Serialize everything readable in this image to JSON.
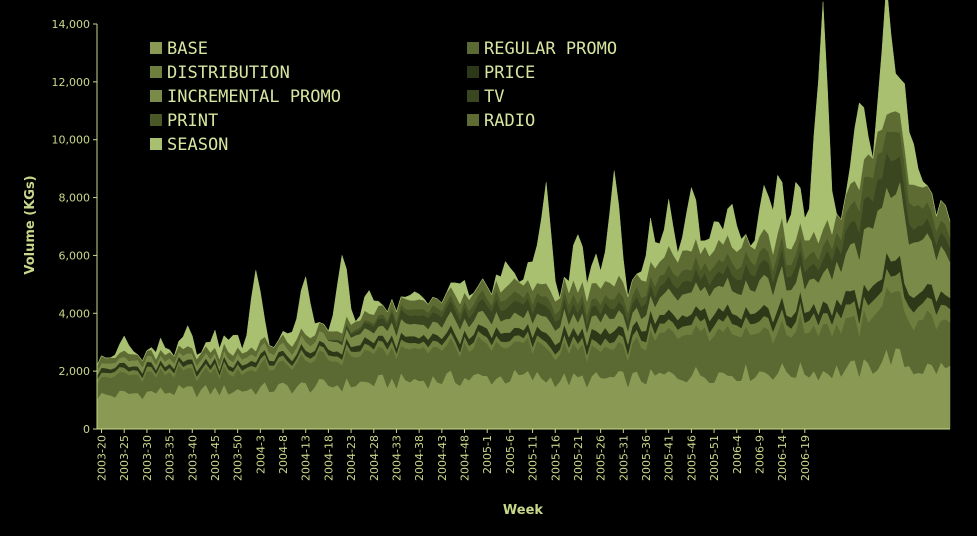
{
  "chart_data": {
    "type": "area",
    "stacked": true,
    "xlabel": "Week",
    "ylabel": "Volume (KGs)",
    "ylim": [
      0,
      14000
    ],
    "yticks": [
      0,
      2000,
      4000,
      6000,
      8000,
      10000,
      12000,
      14000
    ],
    "ytick_labels": [
      "0",
      "2,000",
      "4,000",
      "6,000",
      "8,000",
      "10,000",
      "12,000",
      "14,000"
    ],
    "x_tick_labels": [
      "2003-20",
      "2003-25",
      "2003-30",
      "2003-35",
      "2003-40",
      "2003-45",
      "2003-50",
      "2004-3",
      "2004-8",
      "2004-13",
      "2004-18",
      "2004-23",
      "2004-28",
      "2004-33",
      "2004-38",
      "2004-43",
      "2004-48",
      "2005-1",
      "2005-6",
      "2005-11",
      "2005-16",
      "2005-21",
      "2005-26",
      "2005-31",
      "2005-36",
      "2005-41",
      "2005-46",
      "2005-51",
      "2006-4",
      "2006-9",
      "2006-14",
      "2006-19"
    ],
    "legend_position": "top-left inside",
    "grid": false,
    "background": "#000000",
    "series": [
      {
        "name": "BASE",
        "color": "#8a9a55",
        "anchors": [
          [
            0,
            1150
          ],
          [
            15,
            1300
          ],
          [
            30,
            1350
          ],
          [
            50,
            1500
          ],
          [
            65,
            1650
          ],
          [
            80,
            1750
          ],
          [
            95,
            1800
          ],
          [
            105,
            1700
          ],
          [
            120,
            1750
          ],
          [
            130,
            1900
          ],
          [
            150,
            2000
          ],
          [
            160,
            2000
          ],
          [
            170,
            2100
          ],
          [
            175,
            2600
          ],
          [
            180,
            2100
          ],
          [
            188,
            2100
          ]
        ]
      },
      {
        "name": "REGULAR PROMO",
        "color": "#5a6a32",
        "anchors": [
          [
            0,
            650
          ],
          [
            15,
            600
          ],
          [
            30,
            650
          ],
          [
            50,
            900
          ],
          [
            65,
            1000
          ],
          [
            80,
            1100
          ],
          [
            95,
            1100
          ],
          [
            105,
            900
          ],
          [
            120,
            1100
          ],
          [
            130,
            1700
          ],
          [
            150,
            1400
          ],
          [
            160,
            1500
          ],
          [
            170,
            1600
          ],
          [
            175,
            2200
          ],
          [
            180,
            1600
          ],
          [
            188,
            1600
          ]
        ]
      },
      {
        "name": "DISTRIBUTION",
        "color": "#6e7e3e",
        "anchors": [
          [
            0,
            150
          ],
          [
            30,
            150
          ],
          [
            65,
            200
          ],
          [
            95,
            200
          ],
          [
            130,
            300
          ],
          [
            160,
            400
          ],
          [
            175,
            600
          ],
          [
            188,
            500
          ]
        ]
      },
      {
        "name": "PRICE",
        "color": "#2c3818",
        "anchors": [
          [
            0,
            150
          ],
          [
            30,
            150
          ],
          [
            65,
            200
          ],
          [
            95,
            300
          ],
          [
            130,
            350
          ],
          [
            160,
            350
          ],
          [
            175,
            500
          ],
          [
            188,
            400
          ]
        ]
      },
      {
        "name": "INCREMENTAL PROMO",
        "color": "#7a8a48",
        "anchors": [
          [
            0,
            200
          ],
          [
            30,
            200
          ],
          [
            65,
            400
          ],
          [
            95,
            500
          ],
          [
            120,
            500
          ],
          [
            130,
            800
          ],
          [
            160,
            1000
          ],
          [
            175,
            2500
          ],
          [
            188,
            1200
          ]
        ]
      },
      {
        "name": "TV",
        "color": "#3a4620",
        "anchors": [
          [
            0,
            0
          ],
          [
            50,
            0
          ],
          [
            65,
            300
          ],
          [
            95,
            400
          ],
          [
            105,
            300
          ],
          [
            130,
            400
          ],
          [
            140,
            500
          ],
          [
            160,
            500
          ],
          [
            175,
            1200
          ],
          [
            180,
            500
          ],
          [
            188,
            500
          ]
        ]
      },
      {
        "name": "PRINT",
        "color": "#4a5828",
        "anchors": [
          [
            0,
            0
          ],
          [
            50,
            0
          ],
          [
            70,
            200
          ],
          [
            95,
            300
          ],
          [
            120,
            300
          ],
          [
            130,
            400
          ],
          [
            160,
            400
          ],
          [
            175,
            900
          ],
          [
            188,
            400
          ]
        ]
      },
      {
        "name": "RADIO",
        "color": "#5e6c34",
        "anchors": [
          [
            0,
            200
          ],
          [
            30,
            200
          ],
          [
            65,
            300
          ],
          [
            95,
            400
          ],
          [
            130,
            600
          ],
          [
            160,
            600
          ],
          [
            175,
            700
          ],
          [
            188,
            600
          ]
        ]
      },
      {
        "name": "SEASON",
        "color": "#a8c070",
        "anchors": [
          [
            0,
            0
          ],
          [
            188,
            0
          ]
        ],
        "spikes": [
          [
            6,
            500
          ],
          [
            14,
            400
          ],
          [
            20,
            700
          ],
          [
            26,
            600
          ],
          [
            30,
            700
          ],
          [
            35,
            2800
          ],
          [
            43,
            500
          ],
          [
            46,
            2000
          ],
          [
            54,
            2700
          ],
          [
            60,
            800
          ],
          [
            70,
            300
          ],
          [
            80,
            700
          ],
          [
            90,
            900
          ],
          [
            96,
            1000
          ],
          [
            99,
            3500
          ],
          [
            106,
            2000
          ],
          [
            110,
            1000
          ],
          [
            114,
            4000
          ],
          [
            122,
            1500
          ],
          [
            126,
            1600
          ],
          [
            131,
            2200
          ],
          [
            136,
            1000
          ],
          [
            140,
            1500
          ],
          [
            147,
            1500
          ],
          [
            150,
            2000
          ],
          [
            154,
            2000
          ],
          [
            158,
            1800
          ],
          [
            160,
            7500
          ],
          [
            168,
            3000
          ],
          [
            174,
            4500
          ],
          [
            178,
            2000
          ],
          [
            180,
            1000
          ]
        ]
      }
    ]
  }
}
